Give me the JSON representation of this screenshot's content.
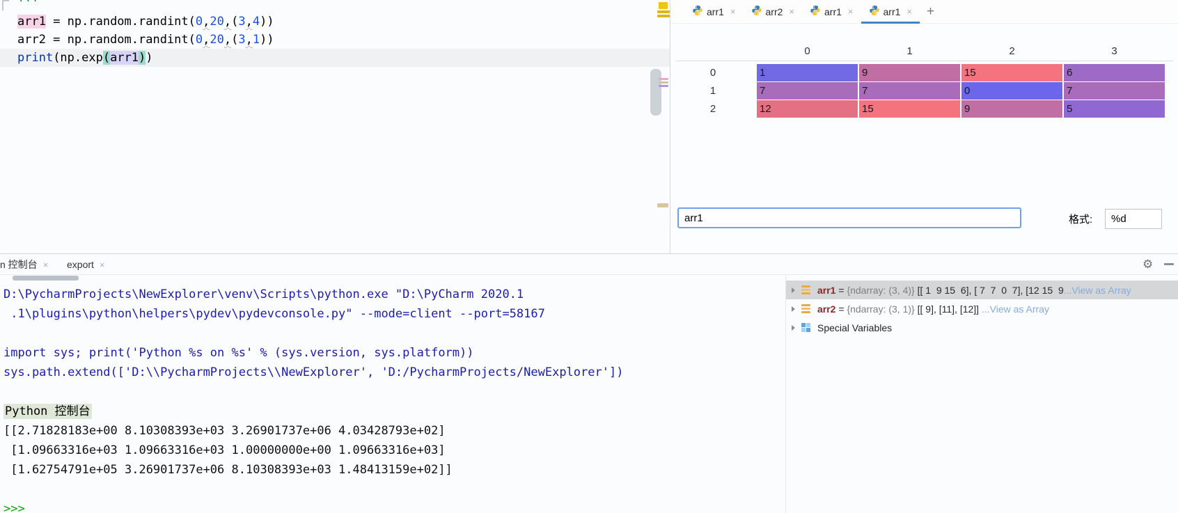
{
  "colors": {
    "tab_accent_blue": "#4184c8",
    "focused_input_border": "#6da2e8",
    "console_system_text": "#1c1cac",
    "console_output_text": "#121212",
    "console_prompt_green": "#0ba50b",
    "console_label_highlight": "#dfe7d6",
    "selected_row_gray": "#d5d6d8",
    "view_as_array_link": "#85abdb",
    "variable_name_red": "#8a2727"
  },
  "editor": {
    "lines": [
      {
        "tokens": [
          {
            "t": "'''",
            "c": "str"
          }
        ]
      },
      {
        "tokens": [
          {
            "t": "arr1",
            "hl": "pink"
          },
          {
            "t": " = np.random.randint("
          },
          {
            "t": "0",
            "c": "num"
          },
          {
            "t": ",",
            "sq": true
          },
          {
            "t": "20",
            "c": "num"
          },
          {
            "t": ",",
            "sq": true
          },
          {
            "t": "("
          },
          {
            "t": "3",
            "c": "num"
          },
          {
            "t": ",",
            "sq": true
          },
          {
            "t": "4",
            "c": "num"
          },
          {
            "t": "))"
          }
        ]
      },
      {
        "tokens": [
          {
            "t": "arr2 = np.random.randint("
          },
          {
            "t": "0",
            "c": "num"
          },
          {
            "t": ",",
            "sq": true
          },
          {
            "t": "20",
            "c": "num"
          },
          {
            "t": ",",
            "sq": true
          },
          {
            "t": "("
          },
          {
            "t": "3",
            "c": "num"
          },
          {
            "t": ",",
            "sq": true
          },
          {
            "t": "1",
            "c": "num"
          },
          {
            "t": "))"
          }
        ]
      },
      {
        "current": true,
        "tokens": [
          {
            "t": "print",
            "c": "kw"
          },
          {
            "t": "(np.exp"
          },
          {
            "t": "(",
            "hl": "teal"
          },
          {
            "t": "arr1",
            "hl": "lav"
          },
          {
            "t": ")",
            "hl": "teal"
          },
          {
            "t": ")"
          }
        ]
      }
    ]
  },
  "array_viewer": {
    "tabs": [
      {
        "label": "arr1",
        "selected": false
      },
      {
        "label": "arr2",
        "selected": false
      },
      {
        "label": "arr1",
        "selected": false
      },
      {
        "label": "arr1",
        "selected": true
      }
    ],
    "close_label": "×",
    "add_tab_label": "+",
    "col_headers": [
      "0",
      "1",
      "2",
      "3"
    ],
    "rows": [
      {
        "label": "0",
        "cells": [
          {
            "v": "1",
            "bg": "#7269e5"
          },
          {
            "v": "9",
            "bg": "#c16ea4"
          },
          {
            "v": "15",
            "bg": "#f4737e"
          },
          {
            "v": "6",
            "bg": "#9d6ac5"
          }
        ]
      },
      {
        "label": "1",
        "cells": [
          {
            "v": "7",
            "bg": "#a96cba"
          },
          {
            "v": "7",
            "bg": "#a96cba"
          },
          {
            "v": "0",
            "bg": "#6b66eb"
          },
          {
            "v": "7",
            "bg": "#a96cba"
          }
        ]
      },
      {
        "label": "2",
        "cells": [
          {
            "v": "12",
            "bg": "#e47183"
          },
          {
            "v": "15",
            "bg": "#f4737e"
          },
          {
            "v": "9",
            "bg": "#c16ea4"
          },
          {
            "v": "5",
            "bg": "#8f69d1"
          }
        ]
      }
    ],
    "expression_value": "arr1",
    "format_label": "格式:",
    "format_value": "%d"
  },
  "console": {
    "tabs": [
      {
        "label": "n 控制台",
        "close": "×"
      },
      {
        "label": "export",
        "close": "×"
      }
    ],
    "lines": [
      {
        "text": "D:\\PycharmProjects\\NewExplorer\\venv\\Scripts\\python.exe \"D:\\PyCharm 2020.1",
        "color": "sys"
      },
      {
        "text": " .1\\plugins\\python\\helpers\\pydev\\pydevconsole.py\" --mode=client --port=58167",
        "color": "sys"
      },
      {
        "text": "",
        "color": "sys"
      },
      {
        "text": "import sys; print('Python %s on %s' % (sys.version, sys.platform))",
        "color": "sys"
      },
      {
        "text": "sys.path.extend(['D:\\\\PycharmProjects\\\\NewExplorer', 'D:/PycharmProjects/NewExplorer'])",
        "color": "sys"
      },
      {
        "text": "",
        "color": "sys"
      },
      {
        "text": "Python 控制台",
        "color": "plain",
        "highlight": true
      },
      {
        "text": "[[2.71828183e+00 8.10308393e+03 3.26901737e+06 4.03428793e+02]",
        "color": "out"
      },
      {
        "text": " [1.09663316e+03 1.09663316e+03 1.00000000e+00 1.09663316e+03]",
        "color": "out"
      },
      {
        "text": " [1.62754791e+05 3.26901737e+06 8.10308393e+03 1.48413159e+02]]",
        "color": "out"
      },
      {
        "text": "",
        "color": "out"
      },
      {
        "text": ">>>",
        "color": "prompt",
        "prompt": true
      }
    ]
  },
  "variables": {
    "rows": [
      {
        "icon": "ndarray",
        "name": "arr1",
        "eq": " = ",
        "type": "{ndarray: (3, 4)} ",
        "value": "[[ 1  9 15  6], [ 7  7  0  7], [12 15  9",
        "link": "...View as Array",
        "selected": true
      },
      {
        "icon": "ndarray",
        "name": "arr2",
        "eq": " = ",
        "type": "{ndarray: (3, 1)} ",
        "value": "[[ 9], [11], [12]] ",
        "link": "...View as Array",
        "selected": false
      },
      {
        "icon": "special",
        "name": "Special Variables",
        "eq": "",
        "type": "",
        "value": "",
        "link": "",
        "selected": false
      }
    ]
  }
}
